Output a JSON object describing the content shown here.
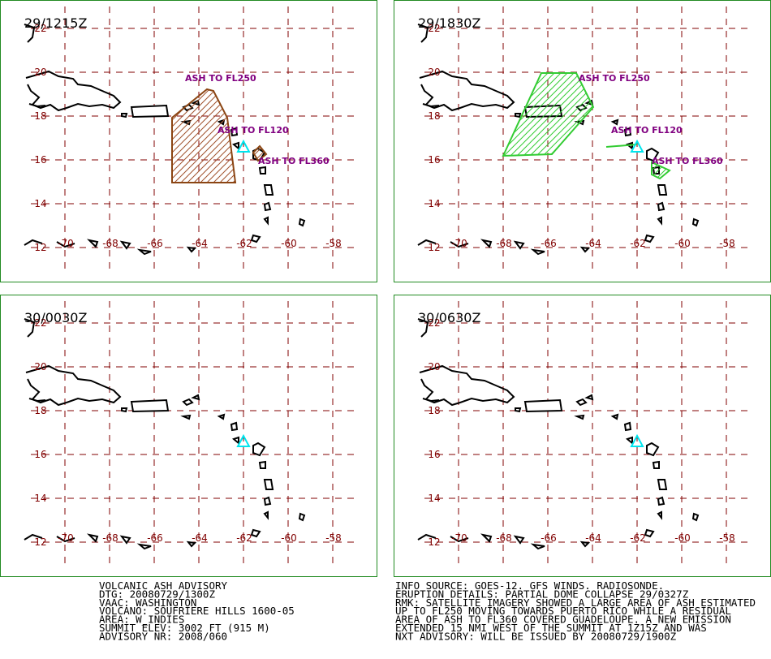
{
  "panels": [
    {
      "time": "29/1215Z",
      "ash_labels": [
        "ASH TO FL250",
        "ASH TO FL120",
        "ASH TO FL360"
      ]
    },
    {
      "time": "29/1830Z",
      "ash_labels": [
        "ASH TO FL250",
        "ASH TO FL120",
        "ASH TO FL360"
      ]
    },
    {
      "time": "30/0030Z"
    },
    {
      "time": "30/0630Z"
    }
  ],
  "map": {
    "lat_labels": [
      22,
      20,
      18,
      16,
      14,
      12
    ],
    "lon_labels": [
      -70,
      -68,
      -66,
      -64,
      -62,
      -60,
      -58
    ]
  },
  "advisory": {
    "left": [
      "VOLCANIC ASH ADVISORY",
      "DTG: 20080729/1300Z",
      "VAAC: WASHINGTON",
      "VOLCANO: SOUFRIERE HILLS 1600-05",
      "AREA: W_INDIES",
      "SUMMIT ELEV: 3002 FT (915 M)",
      "ADVISORY NR: 2008/060"
    ],
    "right": [
      "INFO SOURCE: GOES-12. GFS WINDS. RADIOSONDE.",
      "ERUPTION DETAILS: PARTIAL DOME COLLAPSE 29/0327Z",
      "RMK: SATELLITE IMAGERY SHOWED A LARGE AREA OF ASH ESTIMATED",
      "UP TO FL250 MOVING TOWARDS PUERTO RICO WHILE A RESIDUAL",
      "AREA OF ASH TO FL360 COVERED GUADELOUPE. A NEW EMISSION",
      "EXTENDED 15 NMI WEST OF THE SUMMIT AT 1Z15Z AND WAS",
      "NXT ADVISORY: WILL BE ISSUED BY 20080729/1900Z"
    ]
  }
}
